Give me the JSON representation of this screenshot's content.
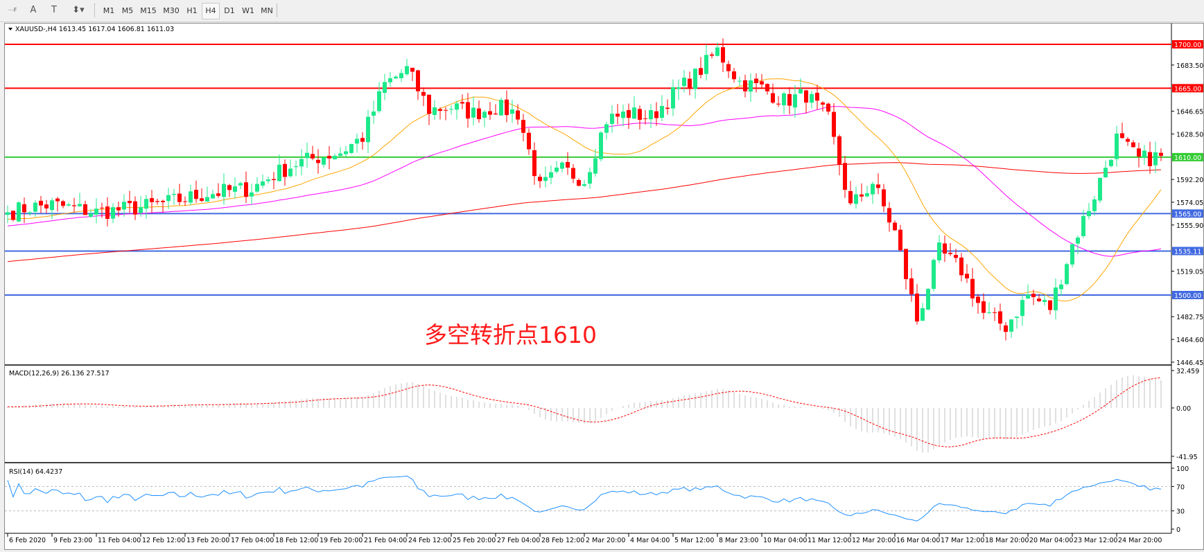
{
  "toolbar": {
    "tools": [
      {
        "name": "period-separator-icon",
        "glyph": "⋯F"
      },
      {
        "name": "text-tool-icon",
        "glyph": "A"
      },
      {
        "name": "text-label-tool-icon",
        "glyph": "T"
      },
      {
        "name": "arrows-tool-icon",
        "glyph": "⬍▾"
      }
    ],
    "timeframes": [
      "M1",
      "M5",
      "M15",
      "M30",
      "H1",
      "H4",
      "D1",
      "W1",
      "MN"
    ],
    "active_timeframe": "H4"
  },
  "chart": {
    "info": "XAUUSD-,H4  1613.45 1617.04 1606.81 1611.03",
    "annotation": "多空转折点1610",
    "price_axis": [
      "1683.50",
      "1646.65",
      "1628.50",
      "1592.20",
      "1574.05",
      "1555.90",
      "1519.05",
      "1482.75",
      "1464.60",
      "1446.45"
    ],
    "levels": [
      {
        "label": "1700.00",
        "value": 1700,
        "color": "#ff0000"
      },
      {
        "label": "1665.00",
        "value": 1665,
        "color": "#ff0000"
      },
      {
        "label": "1610.00",
        "value": 1610,
        "color": "#33cc33"
      },
      {
        "label": "1565.00",
        "value": 1565,
        "color": "#4169e1"
      },
      {
        "label": "1535.11",
        "value": 1535.11,
        "color": "#4169e1"
      },
      {
        "label": "1500.00",
        "value": 1500,
        "color": "#4169e1"
      }
    ],
    "colors": {
      "bull": "#1de98b",
      "bear": "#ff0000",
      "ma_slow": "#ff0000",
      "ma_mid": "#ff00ff",
      "ma_fast": "#ffa500",
      "macd_hist": "#c0c0c0",
      "macd_signal": "#ff0000",
      "rsi": "#1e90ff"
    },
    "time_axis": [
      "6 Feb 2020",
      "9 Feb 23:00",
      "11 Feb 04:00",
      "12 Feb 12:00",
      "13 Feb 20:00",
      "17 Feb 04:00",
      "18 Feb 12:00",
      "19 Feb 20:00",
      "21 Feb 04:00",
      "24 Feb 12:00",
      "25 Feb 20:00",
      "27 Feb 04:00",
      "28 Feb 12:00",
      "2 Mar 20:00",
      "4 Mar 04:00",
      "5 Mar 12:00",
      "8 Mar 23:00",
      "10 Mar 04:00",
      "11 Mar 12:00",
      "12 Mar 20:00",
      "16 Mar 04:00",
      "17 Mar 12:00",
      "18 Mar 20:00",
      "20 Mar 04:00",
      "23 Mar 12:00",
      "24 Mar 20:00"
    ]
  },
  "macd": {
    "label": "MACD(12,26,9) 26.136 27.517",
    "axis": [
      "32.459",
      "0.00",
      "-41.95"
    ]
  },
  "rsi": {
    "label": "RSI(14) 64.4237",
    "axis": [
      "100",
      "70",
      "30",
      "0"
    ],
    "levels": [
      70,
      30
    ]
  },
  "chart_data": {
    "type": "candlestick",
    "symbol": "XAUUSD-",
    "timeframe": "H4",
    "last_ohlc": {
      "open": 1613.45,
      "high": 1617.04,
      "low": 1606.81,
      "close": 1611.03
    },
    "approx_closes_half_tick": [
      1566,
      1570,
      1572,
      1569,
      1566,
      1568,
      1570,
      1573,
      1577,
      1581,
      1583,
      1585,
      1596,
      1605,
      1610,
      1614,
      1626,
      1668,
      1680,
      1648,
      1650,
      1645,
      1650,
      1645,
      1585,
      1600,
      1592,
      1640,
      1645,
      1642,
      1660,
      1675,
      1695,
      1670,
      1665,
      1655,
      1660,
      1640,
      1570,
      1590,
      1550,
      1480,
      1535,
      1520,
      1485,
      1475,
      1500,
      1490,
      1540,
      1580,
      1625,
      1608,
      1611
    ],
    "ylim": [
      1446.45,
      1700
    ]
  }
}
